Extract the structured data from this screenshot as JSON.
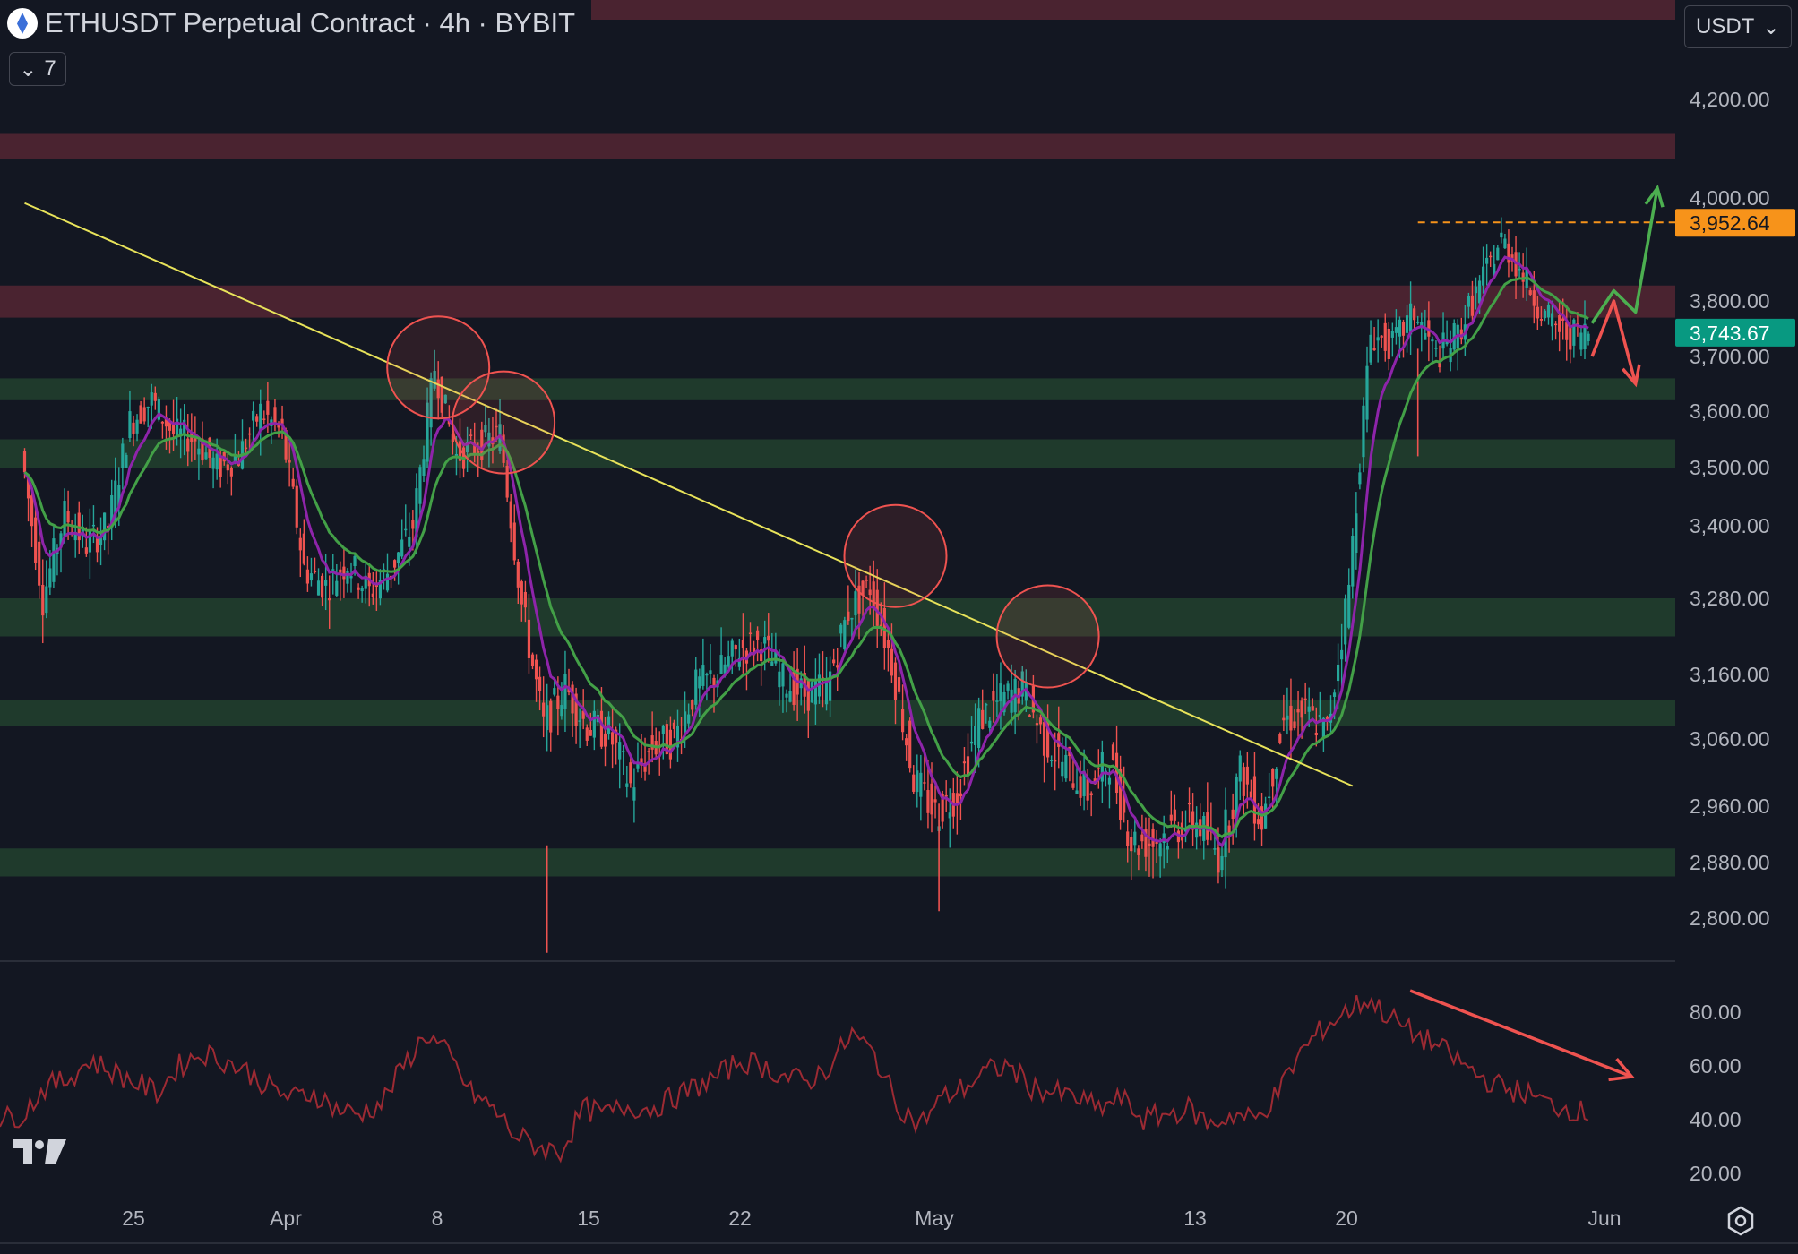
{
  "header": {
    "title": "ETHUSDT Perpetual Contract · 4h · BYBIT",
    "indicator_count": "7",
    "currency": "USDT"
  },
  "price_axis": {
    "labels": [
      "4,200.00",
      "4,000.00",
      "3,800.00",
      "3,700.00",
      "3,600.00",
      "3,500.00",
      "3,400.00",
      "3,280.00",
      "3,160.00",
      "3,060.00",
      "2,960.00",
      "2,880.00",
      "2,800.00"
    ],
    "tag_level": "3,952.64",
    "tag_last": "3,743.67"
  },
  "osc_axis": {
    "labels": [
      "80.00",
      "60.00",
      "40.00",
      "20.00"
    ]
  },
  "time_axis": {
    "labels": [
      "25",
      "Apr",
      "8",
      "15",
      "22",
      "May",
      "13",
      "20",
      "Jun"
    ]
  },
  "colors": {
    "background": "#131722",
    "resistance_zone": "#4a2330",
    "support_zone": "#1f3a2c",
    "trendline": "#e8e35a",
    "candle_up": "#26a69a",
    "candle_down": "#ef5350",
    "ema_fast": "#8e24aa",
    "ema_slow": "#43a047",
    "oscillator": "#9c2a33",
    "level_tag": "#f7931a",
    "last_price_tag": "#089981"
  },
  "chart_data": {
    "type": "candlestick",
    "symbol": "ETHUSDT",
    "timeframe": "4h",
    "exchange": "BYBIT",
    "date_range": [
      "2024-03-20",
      "2024-06-01"
    ],
    "resistance_zones": [
      [
        4080,
        4130
      ],
      [
        3770,
        3830
      ]
    ],
    "support_zones": [
      [
        3620,
        3660
      ],
      [
        3500,
        3550
      ],
      [
        3220,
        3280
      ],
      [
        3080,
        3120
      ],
      [
        2860,
        2900
      ]
    ],
    "key_level": 3952.64,
    "last_price": 3743.67,
    "descending_trendline": [
      {
        "date": "2024-03-20",
        "price": 3990
      },
      {
        "date": "2024-05-20",
        "price": 2990
      }
    ],
    "touch_points": [
      {
        "date": "2024-04-08",
        "price": 3680
      },
      {
        "date": "2024-04-11",
        "price": 3580
      },
      {
        "date": "2024-04-29",
        "price": 3350
      },
      {
        "date": "2024-05-06",
        "price": 3220
      }
    ],
    "price_path": [
      {
        "date": "2024-03-20",
        "price": 3530
      },
      {
        "date": "2024-03-21",
        "price": 3280
      },
      {
        "date": "2024-03-22",
        "price": 3420
      },
      {
        "date": "2024-03-23",
        "price": 3370
      },
      {
        "date": "2024-03-24",
        "price": 3400
      },
      {
        "date": "2024-03-25",
        "price": 3580
      },
      {
        "date": "2024-03-26",
        "price": 3620
      },
      {
        "date": "2024-03-27",
        "price": 3560
      },
      {
        "date": "2024-03-28",
        "price": 3550
      },
      {
        "date": "2024-03-29",
        "price": 3500
      },
      {
        "date": "2024-03-30",
        "price": 3520
      },
      {
        "date": "2024-03-31",
        "price": 3600
      },
      {
        "date": "2024-04-01",
        "price": 3560
      },
      {
        "date": "2024-04-02",
        "price": 3330
      },
      {
        "date": "2024-04-03",
        "price": 3300
      },
      {
        "date": "2024-04-04",
        "price": 3340
      },
      {
        "date": "2024-04-05",
        "price": 3290
      },
      {
        "date": "2024-04-06",
        "price": 3330
      },
      {
        "date": "2024-04-07",
        "price": 3400
      },
      {
        "date": "2024-04-08",
        "price": 3680
      },
      {
        "date": "2024-04-09",
        "price": 3520
      },
      {
        "date": "2024-04-10",
        "price": 3540
      },
      {
        "date": "2024-04-11",
        "price": 3560
      },
      {
        "date": "2024-04-12",
        "price": 3270
      },
      {
        "date": "2024-04-13",
        "price": 3080
      },
      {
        "date": "2024-04-14",
        "price": 3140
      },
      {
        "date": "2024-04-15",
        "price": 3080
      },
      {
        "date": "2024-04-16",
        "price": 3070
      },
      {
        "date": "2024-04-17",
        "price": 2990
      },
      {
        "date": "2024-04-18",
        "price": 3050
      },
      {
        "date": "2024-04-19",
        "price": 3060
      },
      {
        "date": "2024-04-20",
        "price": 3140
      },
      {
        "date": "2024-04-21",
        "price": 3160
      },
      {
        "date": "2024-04-22",
        "price": 3200
      },
      {
        "date": "2024-04-23",
        "price": 3210
      },
      {
        "date": "2024-04-24",
        "price": 3150
      },
      {
        "date": "2024-04-25",
        "price": 3130
      },
      {
        "date": "2024-04-26",
        "price": 3140
      },
      {
        "date": "2024-04-27",
        "price": 3260
      },
      {
        "date": "2024-04-28",
        "price": 3300
      },
      {
        "date": "2024-04-29",
        "price": 3180
      },
      {
        "date": "2024-04-30",
        "price": 3000
      },
      {
        "date": "2024-05-01",
        "price": 2950
      },
      {
        "date": "2024-05-02",
        "price": 2980
      },
      {
        "date": "2024-05-03",
        "price": 3090
      },
      {
        "date": "2024-05-04",
        "price": 3120
      },
      {
        "date": "2024-05-05",
        "price": 3140
      },
      {
        "date": "2024-05-06",
        "price": 3060
      },
      {
        "date": "2024-05-07",
        "price": 3020
      },
      {
        "date": "2024-05-08",
        "price": 2980
      },
      {
        "date": "2024-05-09",
        "price": 3030
      },
      {
        "date": "2024-05-10",
        "price": 2910
      },
      {
        "date": "2024-05-11",
        "price": 2910
      },
      {
        "date": "2024-05-12",
        "price": 2930
      },
      {
        "date": "2024-05-13",
        "price": 2940
      },
      {
        "date": "2024-05-14",
        "price": 2890
      },
      {
        "date": "2024-05-15",
        "price": 3010
      },
      {
        "date": "2024-05-16",
        "price": 2940
      },
      {
        "date": "2024-05-17",
        "price": 3090
      },
      {
        "date": "2024-05-18",
        "price": 3100
      },
      {
        "date": "2024-05-19",
        "price": 3070
      },
      {
        "date": "2024-05-20",
        "price": 3300
      },
      {
        "date": "2024-05-21",
        "price": 3740
      },
      {
        "date": "2024-05-22",
        "price": 3720
      },
      {
        "date": "2024-05-23",
        "price": 3780
      },
      {
        "date": "2024-05-24",
        "price": 3700
      },
      {
        "date": "2024-05-25",
        "price": 3740
      },
      {
        "date": "2024-05-26",
        "price": 3830
      },
      {
        "date": "2024-05-27",
        "price": 3920
      },
      {
        "date": "2024-05-28",
        "price": 3850
      },
      {
        "date": "2024-05-29",
        "price": 3770
      },
      {
        "date": "2024-05-30",
        "price": 3740
      },
      {
        "date": "2024-05-31",
        "price": 3743.67
      }
    ],
    "wicks_low": [
      {
        "date": "2024-04-13",
        "price": 2750
      },
      {
        "date": "2024-05-01",
        "price": 2810
      },
      {
        "date": "2024-05-23",
        "price": 3520
      }
    ],
    "projection_up": [
      {
        "date": "2024-05-31",
        "price": 3760
      },
      {
        "date": "2024-06-01",
        "price": 3820
      },
      {
        "date": "2024-06-02",
        "price": 3780
      },
      {
        "date": "2024-06-03",
        "price": 4020
      }
    ],
    "projection_down": [
      {
        "date": "2024-05-31",
        "price": 3700
      },
      {
        "date": "2024-06-01",
        "price": 3800
      },
      {
        "date": "2024-06-02",
        "price": 3650
      }
    ],
    "oscillator": {
      "ylim": [
        10,
        95
      ],
      "values": [
        40,
        42,
        52,
        55,
        62,
        58,
        54,
        50,
        60,
        65,
        62,
        58,
        52,
        48,
        50,
        44,
        42,
        46,
        60,
        72,
        64,
        50,
        44,
        34,
        30,
        28,
        44,
        42,
        45,
        44,
        48,
        52,
        56,
        62,
        60,
        56,
        54,
        60,
        72,
        64,
        46,
        38,
        48,
        52,
        58,
        60,
        52,
        50,
        48,
        44,
        48,
        40,
        42,
        44,
        38,
        42,
        40,
        50,
        65,
        74,
        80,
        85,
        78,
        72,
        68,
        62,
        56,
        52,
        50,
        46,
        44,
        42
      ],
      "divergence_arrow": [
        {
          "date": "2024-05-21",
          "value": 88
        },
        {
          "date": "2024-06-01",
          "value": 56
        }
      ]
    }
  }
}
